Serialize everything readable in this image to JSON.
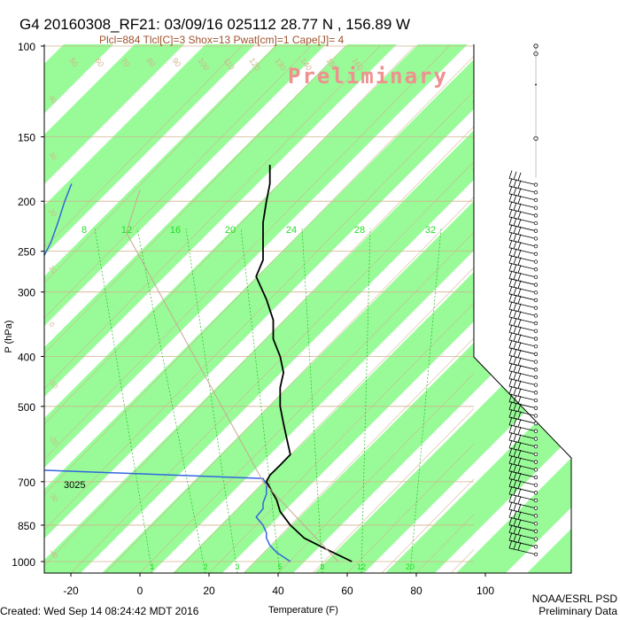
{
  "header": {
    "title": "G4 20160308_RF21: 03/09/16 025112  28.77 N , 156.89 W",
    "indices": "Plcl=884 Tlcl[C]=3 Shox=13 Pwat[cm]=1 Cape[J]= 4",
    "watermark": "Preliminary"
  },
  "footer": {
    "created": "Created: Wed Sep 14 08:24:42 MDT 2016",
    "org": "NOAA/ESRL PSD",
    "status": "Preliminary Data"
  },
  "height_label": "3025",
  "colors": {
    "band": "#98fb98",
    "isotherm": "#d2b48c",
    "mixing": "#22bb22",
    "mixing_label": "#22dd22",
    "temperature": "#000000",
    "dewpoint": "#3366dd",
    "parcel": "#c8a890",
    "watermark": "#f09090",
    "title": "#000000",
    "indices": "#a0522d"
  },
  "chart_data": {
    "type": "line",
    "chart_kind": "skew-T log-p sounding",
    "xlabel": "Temperature (F)",
    "ylabel": "P (hPa)",
    "x_ticks": [
      -20,
      0,
      20,
      40,
      60,
      80,
      100
    ],
    "y_ticks": [
      100,
      150,
      200,
      250,
      300,
      400,
      500,
      700,
      850,
      1000
    ],
    "y_scale": "log",
    "isotherm_labels_f": [
      50,
      60,
      70,
      80,
      90,
      100,
      110,
      120,
      130,
      140,
      150,
      160
    ],
    "isotherm_labels_right": [
      30,
      20,
      10,
      0,
      -10,
      -20,
      -30
    ],
    "isotherm_labels_left": [
      40,
      30,
      20,
      10,
      0,
      -10,
      -20,
      -30,
      -40
    ],
    "mixing_ratio_top_labels": [
      "8",
      "12",
      "16",
      "20",
      "24",
      "28",
      "32"
    ],
    "mixing_ratio_bottom_labels": [
      "1",
      "2",
      "3",
      "5",
      "8",
      "12",
      "20"
    ],
    "series": [
      {
        "name": "Temperature",
        "points": [
          [
            62,
            1000
          ],
          [
            55,
            950
          ],
          [
            48,
            900
          ],
          [
            44,
            850
          ],
          [
            41,
            800
          ],
          [
            40,
            760
          ],
          [
            37,
            700
          ],
          [
            38,
            680
          ],
          [
            41,
            650
          ],
          [
            44,
            620
          ],
          [
            43,
            580
          ],
          [
            42,
            540
          ],
          [
            41,
            500
          ],
          [
            41,
            460
          ],
          [
            42,
            430
          ],
          [
            41,
            400
          ],
          [
            39,
            370
          ],
          [
            39,
            340
          ],
          [
            37,
            310
          ],
          [
            34,
            280
          ],
          [
            36,
            260
          ],
          [
            36,
            240
          ],
          [
            36,
            220
          ],
          [
            37,
            200
          ],
          [
            38,
            185
          ],
          [
            38,
            170
          ]
        ]
      },
      {
        "name": "Dewpoint",
        "points": [
          [
            44,
            1000
          ],
          [
            40,
            960
          ],
          [
            38,
            930
          ],
          [
            37,
            900
          ],
          [
            37,
            880
          ],
          [
            36,
            850
          ],
          [
            34,
            820
          ],
          [
            36,
            790
          ],
          [
            36,
            770
          ],
          [
            37,
            740
          ],
          [
            37,
            710
          ],
          [
            36,
            690
          ],
          [
            -28,
            665
          ]
        ]
      },
      {
        "name": "Dewpoint upper",
        "points": [
          [
            -28,
            255
          ],
          [
            -26,
            240
          ],
          [
            -24,
            220
          ],
          [
            -22,
            200
          ],
          [
            -20,
            185
          ]
        ]
      },
      {
        "name": "Parcel",
        "points": [
          [
            58,
            1000
          ],
          [
            36,
            700
          ],
          [
            -4,
            230
          ],
          [
            0,
            190
          ]
        ]
      }
    ],
    "wind_barbs_top_p": 180,
    "wind_barbs_bottom_p": 1000
  }
}
